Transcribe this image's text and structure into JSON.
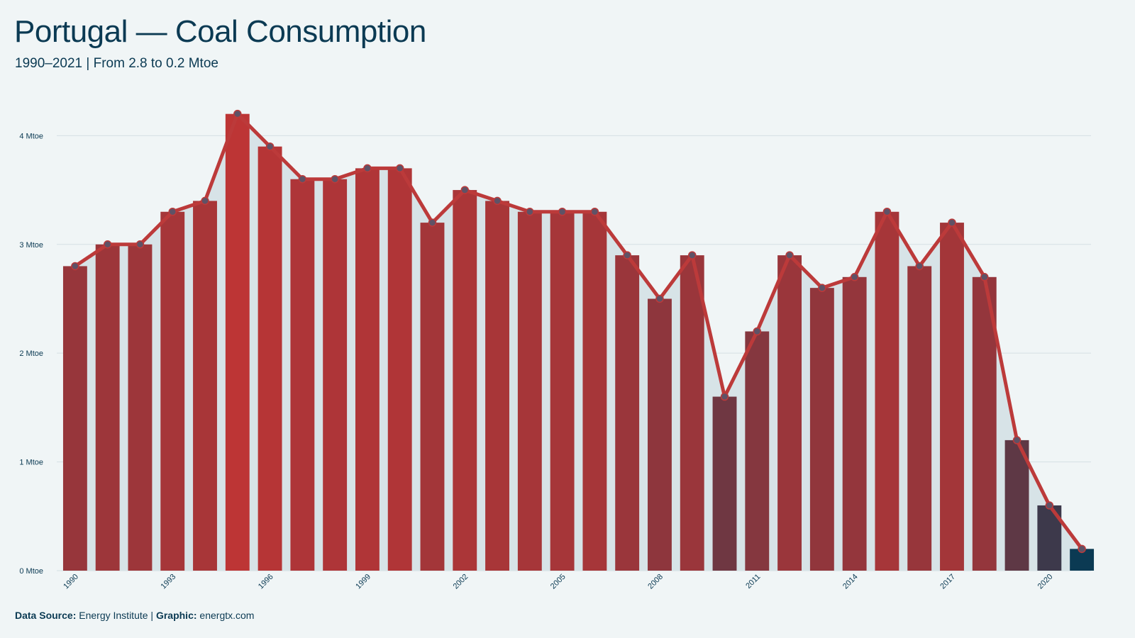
{
  "header": {
    "title": "Portugal — Coal Consumption",
    "subtitle": "1990–2021 | From 2.8 to 0.2 Mtoe"
  },
  "footer": {
    "source_label": "Data Source:",
    "source_value": "Energy Institute",
    "separator": "|",
    "graphic_label": "Graphic:",
    "graphic_value": "energtx.com"
  },
  "colors": {
    "background": "#f0f5f6",
    "text": "#0b3a53",
    "line": "#bc3a3a",
    "bar_high": "#bd3535",
    "bar_low": "#0b3a53",
    "area": "#d7e3e7",
    "grid": "#d5dfe3"
  },
  "chart_data": {
    "type": "bar",
    "title": "Portugal — Coal Consumption",
    "subtitle": "1990–2021 | From 2.8 to 0.2 Mtoe",
    "xlabel": "",
    "ylabel": "",
    "ylim": [
      0,
      4.2
    ],
    "grid": true,
    "legend": "none",
    "y_ticks": [
      0,
      1,
      2,
      3,
      4
    ],
    "y_tick_labels": [
      "0 Mtoe",
      "1 Mtoe",
      "2 Mtoe",
      "3 Mtoe",
      "4 Mtoe"
    ],
    "x_tick_labels": [
      "1990",
      "1993",
      "1996",
      "1999",
      "2002",
      "2005",
      "2008",
      "2011",
      "2014",
      "2017",
      "2020"
    ],
    "categories": [
      "1990",
      "1991",
      "1992",
      "1993",
      "1994",
      "1995",
      "1996",
      "1997",
      "1998",
      "1999",
      "2000",
      "2001",
      "2002",
      "2003",
      "2004",
      "2005",
      "2006",
      "2007",
      "2008",
      "2009",
      "2010",
      "2011",
      "2012",
      "2013",
      "2014",
      "2015",
      "2016",
      "2017",
      "2018",
      "2019",
      "2020",
      "2021"
    ],
    "values": [
      2.8,
      3.0,
      3.0,
      3.3,
      3.4,
      4.2,
      3.9,
      3.6,
      3.6,
      3.7,
      3.7,
      3.2,
      3.5,
      3.4,
      3.3,
      3.3,
      3.3,
      2.9,
      2.5,
      2.9,
      1.6,
      2.2,
      2.9,
      2.6,
      2.7,
      3.3,
      2.8,
      3.2,
      2.7,
      1.2,
      0.6,
      0.2
    ]
  }
}
